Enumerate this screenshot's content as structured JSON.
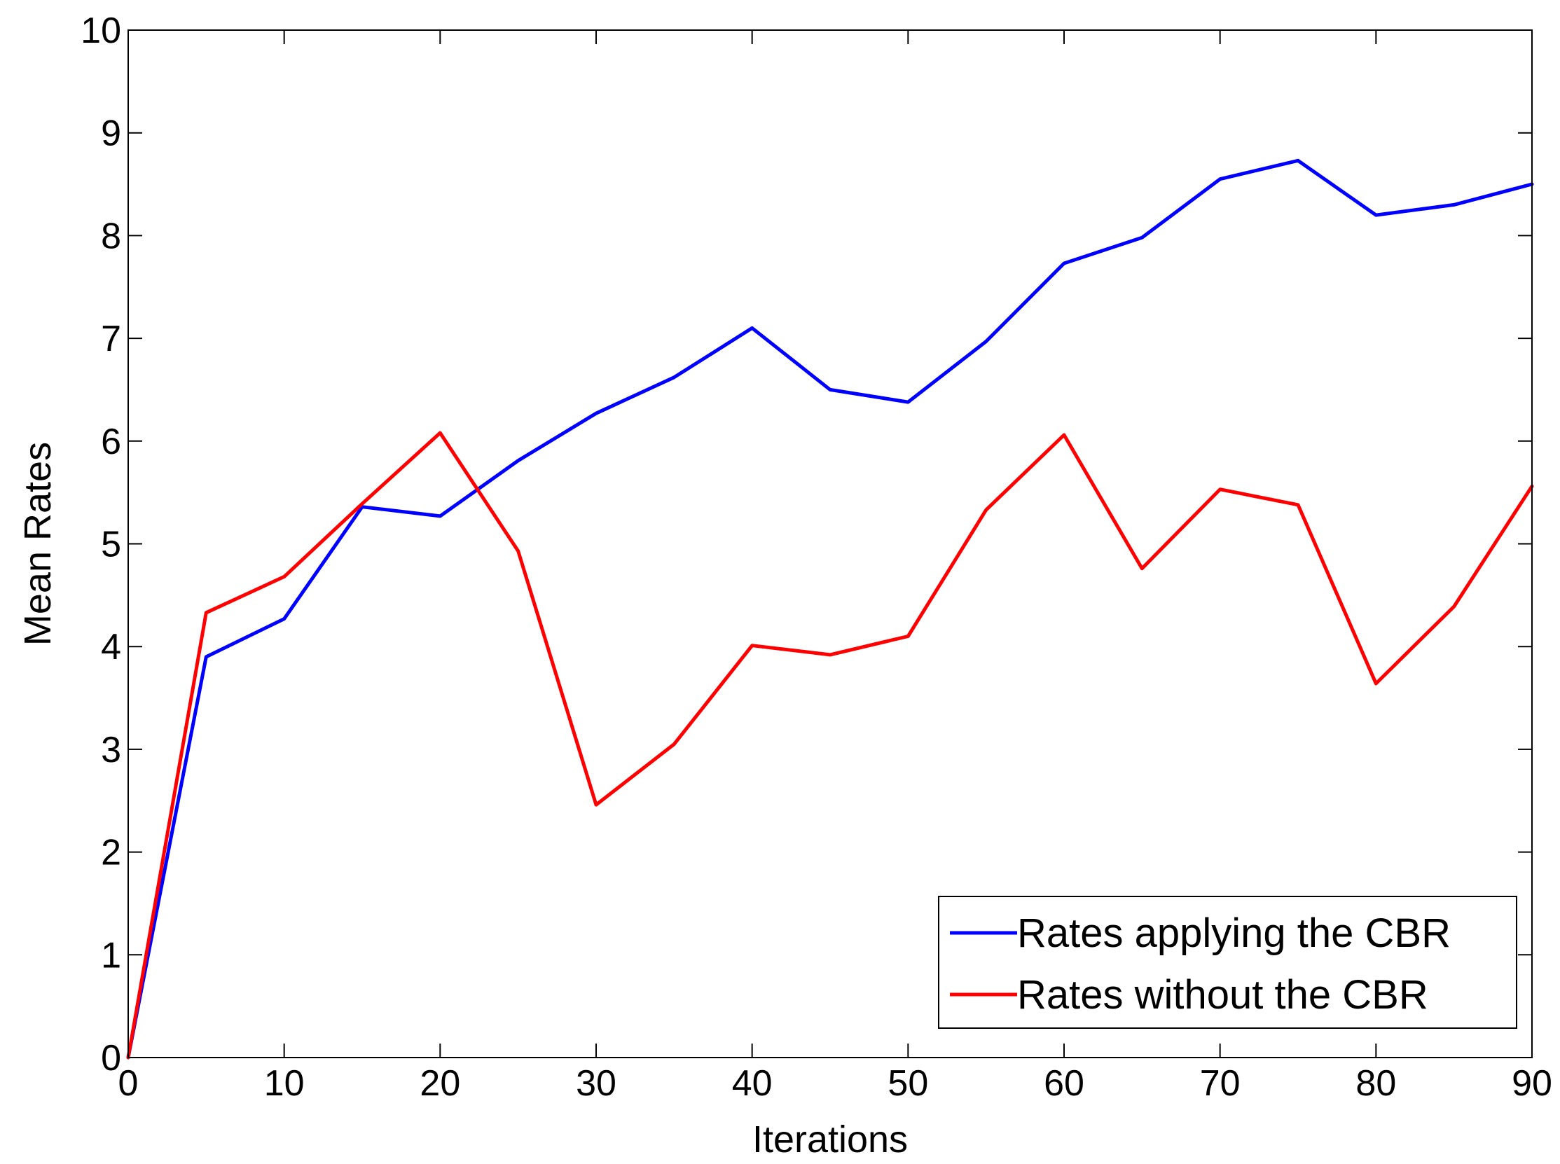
{
  "chart_data": {
    "type": "line",
    "title": "",
    "xlabel": "Iterations",
    "ylabel": "Mean Rates",
    "xlim": [
      0,
      90
    ],
    "ylim": [
      0,
      10
    ],
    "xticks": [
      0,
      10,
      20,
      30,
      40,
      50,
      60,
      70,
      80,
      90
    ],
    "yticks": [
      0,
      1,
      2,
      3,
      4,
      5,
      6,
      7,
      8,
      9,
      10
    ],
    "grid": false,
    "legend_position": "bottom-right",
    "x": [
      0,
      5,
      10,
      15,
      20,
      25,
      30,
      35,
      40,
      45,
      50,
      55,
      60,
      65,
      70,
      75,
      80,
      85,
      90
    ],
    "series": [
      {
        "name": "Rates applying the CBR",
        "color": "#0000ff",
        "values": [
          0,
          3.9,
          4.27,
          5.36,
          5.27,
          5.81,
          6.27,
          6.62,
          7.1,
          6.5,
          6.38,
          6.97,
          7.73,
          7.98,
          8.55,
          8.73,
          8.2,
          8.3,
          8.5
        ]
      },
      {
        "name": "Rates without the CBR",
        "color": "#ff0000",
        "values": [
          0,
          4.33,
          4.68,
          5.39,
          6.08,
          4.93,
          2.46,
          3.05,
          4.01,
          3.92,
          4.1,
          5.33,
          6.06,
          4.76,
          5.53,
          5.38,
          3.64,
          4.39,
          5.56
        ]
      }
    ]
  }
}
